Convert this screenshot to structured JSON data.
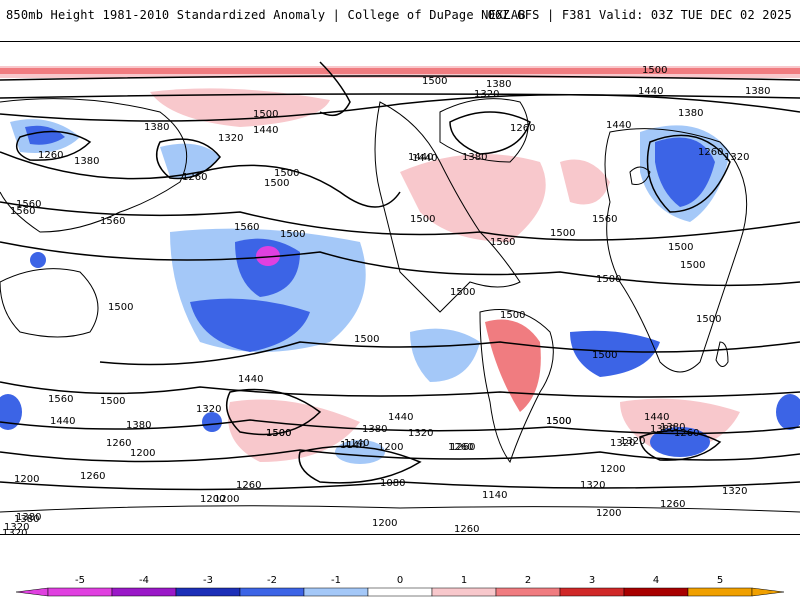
{
  "header": {
    "title": "850mb Height 1981-2010 Standardized Anomaly | College of DuPage NEXLAB",
    "run_info": "06Z GFS | F381 Valid: 03Z TUE DEC 02 2025"
  },
  "map": {
    "contour_labels": [
      "1500",
      "1440",
      "1380",
      "1320",
      "1260",
      "1380",
      "1500",
      "1440",
      "1380",
      "1320",
      "1260",
      "1380",
      "1260",
      "1320",
      "1380",
      "1440",
      "1500",
      "1260",
      "1380",
      "1440",
      "1500",
      "1560",
      "1560",
      "1500",
      "1560",
      "1500",
      "1560",
      "1500",
      "1440",
      "1500",
      "1560",
      "1500",
      "1500",
      "1500",
      "1500",
      "1500",
      "1500",
      "1500",
      "1500",
      "1500",
      "1500",
      "1380",
      "1260",
      "1320",
      "1440",
      "1500",
      "1560",
      "1500",
      "1560",
      "1440",
      "1380",
      "1320",
      "1260",
      "1200",
      "1260",
      "1320",
      "1380",
      "1440",
      "1500",
      "1200",
      "1140",
      "1080",
      "1140",
      "1200",
      "1260",
      "1320",
      "1380",
      "1440",
      "1500",
      "1200",
      "1260",
      "1320",
      "1380",
      "1320",
      "1260",
      "1200",
      "1320",
      "1260",
      "1200",
      "1140",
      "1200",
      "1260",
      "1320",
      "1380",
      "1200"
    ]
  },
  "legend": {
    "ticks": [
      "-5",
      "-4",
      "-3",
      "-2",
      "-1",
      "0",
      "1",
      "2",
      "3",
      "4",
      "5"
    ],
    "colors": [
      "#e040e0",
      "#9a18c8",
      "#1c2fb8",
      "#3c64e6",
      "#a4c8f8",
      "#ffffff",
      "#f8c8cc",
      "#f07c80",
      "#d02828",
      "#a80000",
      "#f0a000"
    ]
  }
}
